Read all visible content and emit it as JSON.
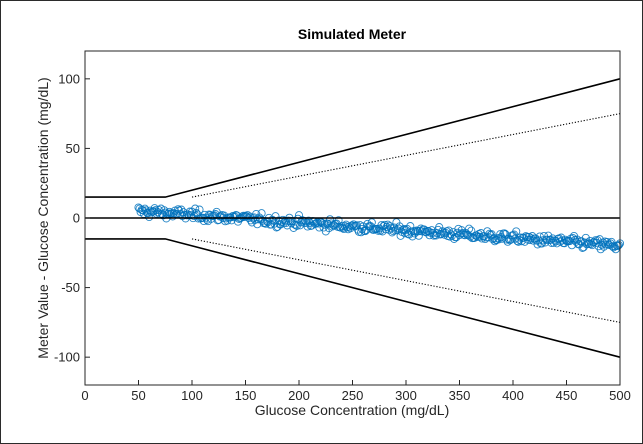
{
  "chart_data": {
    "type": "scatter",
    "title": "Simulated Meter",
    "xlabel": "Glucose Concentration (mg/dL)",
    "ylabel": "Meter Value - Glucose Concentration (mg/dL)",
    "xlim": [
      0,
      500
    ],
    "ylim": [
      -120,
      120
    ],
    "xticks": [
      0,
      50,
      100,
      150,
      200,
      250,
      300,
      350,
      400,
      450,
      500
    ],
    "yticks": [
      -100,
      -50,
      0,
      50,
      100
    ],
    "grid": false,
    "scatter": {
      "x_range": [
        50,
        500
      ],
      "x_step": 1,
      "trend_start": 5,
      "trend_end": -20,
      "noise_sd": 3.5,
      "marker": "open-circle",
      "color": "#0072BD"
    },
    "reference_lines": [
      {
        "style": "solid",
        "points": [
          [
            0,
            0
          ],
          [
            500,
            0
          ]
        ]
      },
      {
        "style": "solid",
        "points": [
          [
            0,
            15
          ],
          [
            75,
            15
          ],
          [
            500,
            100
          ]
        ]
      },
      {
        "style": "solid",
        "points": [
          [
            0,
            -15
          ],
          [
            75,
            -15
          ],
          [
            500,
            -100
          ]
        ]
      },
      {
        "style": "dotted",
        "points": [
          [
            100,
            15
          ],
          [
            500,
            75
          ]
        ]
      },
      {
        "style": "dotted",
        "points": [
          [
            100,
            -15
          ],
          [
            500,
            -75
          ]
        ]
      }
    ]
  }
}
